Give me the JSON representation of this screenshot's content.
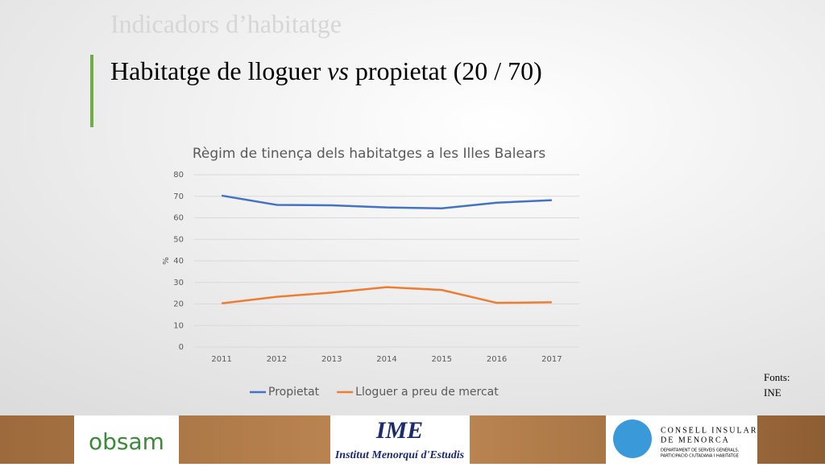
{
  "header": {
    "section": "Indicadors d’habitatge",
    "title_before": "Habitatge de lloguer",
    "title_emphasis": "vs",
    "title_after": "propietat (20 / 70)"
  },
  "chart_data": {
    "type": "line",
    "title": "Règim de tinença dels habitatges a les Illes Balears",
    "y_label": "%",
    "categories": [
      "2011",
      "2012",
      "2013",
      "2014",
      "2015",
      "2016",
      "2017"
    ],
    "series": [
      {
        "name": "Propietat",
        "color": "#4472c4",
        "values": [
          70.3,
          66,
          65.8,
          64.8,
          64.4,
          67,
          68.2
        ]
      },
      {
        "name": "Lloguer a preu de mercat",
        "color": "#ed7d31",
        "values": [
          20.3,
          23.3,
          25.3,
          27.8,
          26.5,
          20.5,
          20.8
        ]
      }
    ],
    "ylim": [
      0,
      80
    ],
    "yticks": [
      0,
      10,
      20,
      30,
      40,
      50,
      60,
      70,
      80
    ],
    "grid": true,
    "legend": "bottom"
  },
  "sources": {
    "label": "Fonts:",
    "value": "INE"
  },
  "footer": {
    "logo1": "obsam",
    "logo2": "IME",
    "logo2_caption": "Institut Menorquí d'Estudis",
    "logo3_line1": "CONSELL INSULAR",
    "logo3_line2": "DE MENORCA",
    "logo3_line3": "DEPARTAMENT DE SERVEIS GENERALS,",
    "logo3_line4": "PARTICIPACIÓ CIUTADANA I HABITATGE"
  }
}
